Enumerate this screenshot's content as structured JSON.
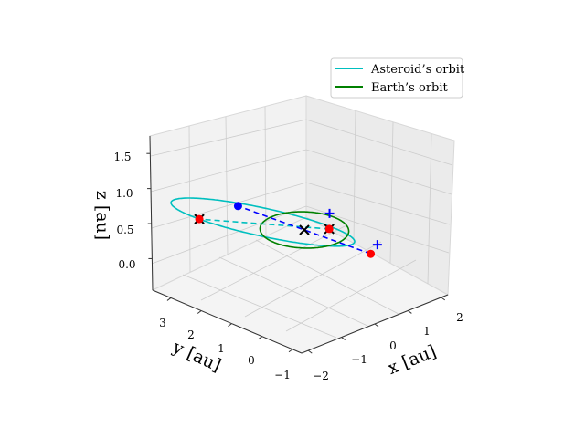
{
  "chart_data": {
    "type": "line3d",
    "view": {
      "elevation_deg": 20,
      "azimuth_deg": -135
    },
    "axes": {
      "x": {
        "label": "x [au]",
        "ticks": [
          -2,
          -1,
          0,
          1,
          2
        ],
        "tick_labels": [
          "−2",
          "−1",
          "0",
          "1",
          "2"
        ]
      },
      "y": {
        "label": "y [au]",
        "ticks": [
          -1,
          0,
          1,
          2,
          3
        ],
        "tick_labels": [
          "−1",
          "0",
          "1",
          "2",
          "3"
        ]
      },
      "z": {
        "label": "z [au]",
        "ticks": [
          0.0,
          0.5,
          1.0,
          1.5
        ],
        "tick_labels": [
          "0.0",
          "0.5",
          "1.0",
          "1.5"
        ]
      }
    },
    "grid": true,
    "legend": {
      "position": "upper right",
      "entries": [
        "Asteroid’s orbit",
        "Earth’s orbit"
      ]
    },
    "series": [
      {
        "name": "Asteroid’s orbit",
        "kind": "ellipse",
        "color": "#00bfbf",
        "center": [
          0.0,
          1.4,
          0.75
        ],
        "axis_a": [
          0.15,
          2.3,
          1.0
        ],
        "axis_b": [
          1.8,
          -0.25,
          -0.1
        ]
      },
      {
        "name": "Earth’s orbit",
        "kind": "circle",
        "color": "#008000",
        "center": [
          0.0,
          0.0,
          0.0
        ],
        "radius": 1.0
      }
    ],
    "segments": [
      {
        "from": [
          -0.15,
          -1.0,
          -0.4
        ],
        "to": [
          0.15,
          3.7,
          1.75
        ],
        "color": "#00bfbf",
        "style": "dashed"
      },
      {
        "from": [
          1.8,
          -0.25,
          -0.1
        ],
        "to": [
          -1.8,
          0.25,
          0.1
        ],
        "color": "#0000ff",
        "style": "dashed"
      }
    ],
    "markers": [
      {
        "point": [
          0.15,
          3.7,
          1.75
        ],
        "symbol": "x",
        "color": "#000000"
      },
      {
        "point": [
          0.15,
          3.7,
          1.75
        ],
        "symbol": "dot",
        "color": "#ff0000"
      },
      {
        "point": [
          0.0,
          0.0,
          0.0
        ],
        "symbol": "x",
        "color": "#000000"
      },
      {
        "point": [
          -0.15,
          -1.0,
          -0.4
        ],
        "symbol": "x",
        "color": "#000000"
      },
      {
        "point": [
          -0.15,
          -1.0,
          -0.4
        ],
        "symbol": "dot",
        "color": "#ff0000"
      },
      {
        "point": [
          -1.8,
          0.25,
          0.1
        ],
        "symbol": "dot",
        "color": "#0000ff"
      },
      {
        "point": [
          1.8,
          -0.25,
          -0.1
        ],
        "symbol": "dot",
        "color": "#ff0000"
      },
      {
        "point": [
          1.5,
          -0.8,
          -0.15
        ],
        "symbol": "plus",
        "color": "#0000ff"
      },
      {
        "point": [
          -0.6,
          -1.5,
          -0.3
        ],
        "symbol": "plus",
        "color": "#0000ff"
      }
    ]
  }
}
